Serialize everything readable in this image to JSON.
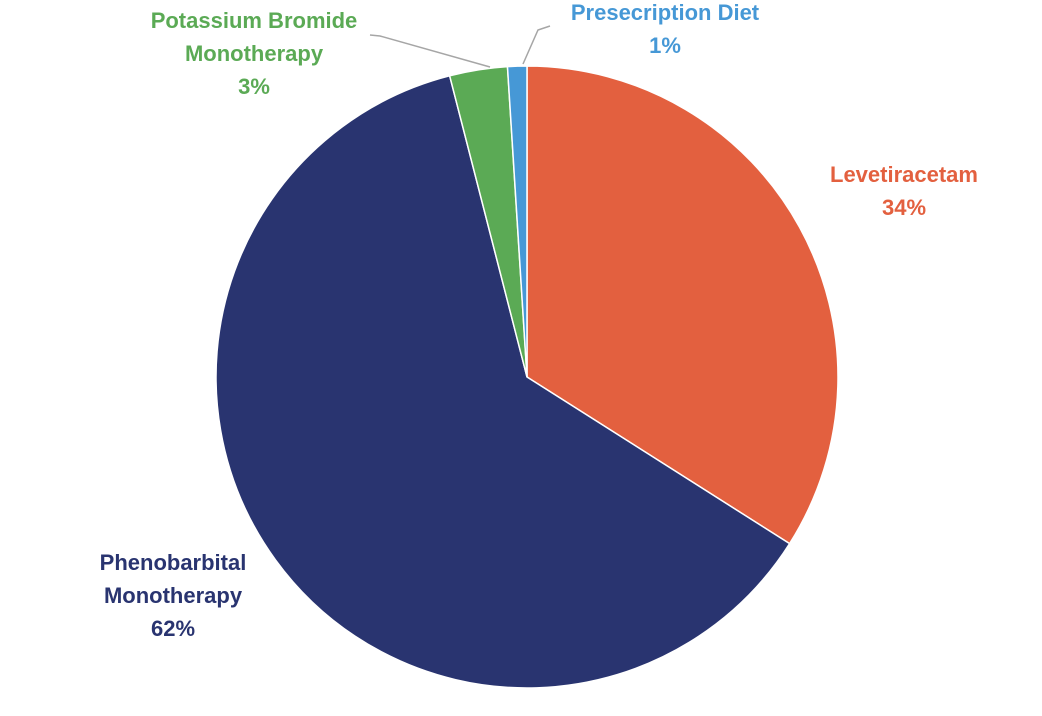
{
  "chart_data": {
    "type": "pie",
    "title": "",
    "start_angle_deg": 0,
    "direction": "clockwise",
    "legend": "none",
    "slices": [
      {
        "label_lines": [
          "Levetiracetam"
        ],
        "value": 34,
        "value_text": "34%",
        "color": "#E3603F"
      },
      {
        "label_lines": [
          "Phenobarbital",
          "Monotherapy"
        ],
        "value": 62,
        "value_text": "62%",
        "color": "#293470"
      },
      {
        "label_lines": [
          "Potassium Bromide",
          "Monotherapy"
        ],
        "value": 3,
        "value_text": "3%",
        "color": "#5BAA55"
      },
      {
        "label_lines": [
          "Presecription Diet"
        ],
        "value": 1,
        "value_text": "1%",
        "color": "#4698D6"
      }
    ]
  }
}
